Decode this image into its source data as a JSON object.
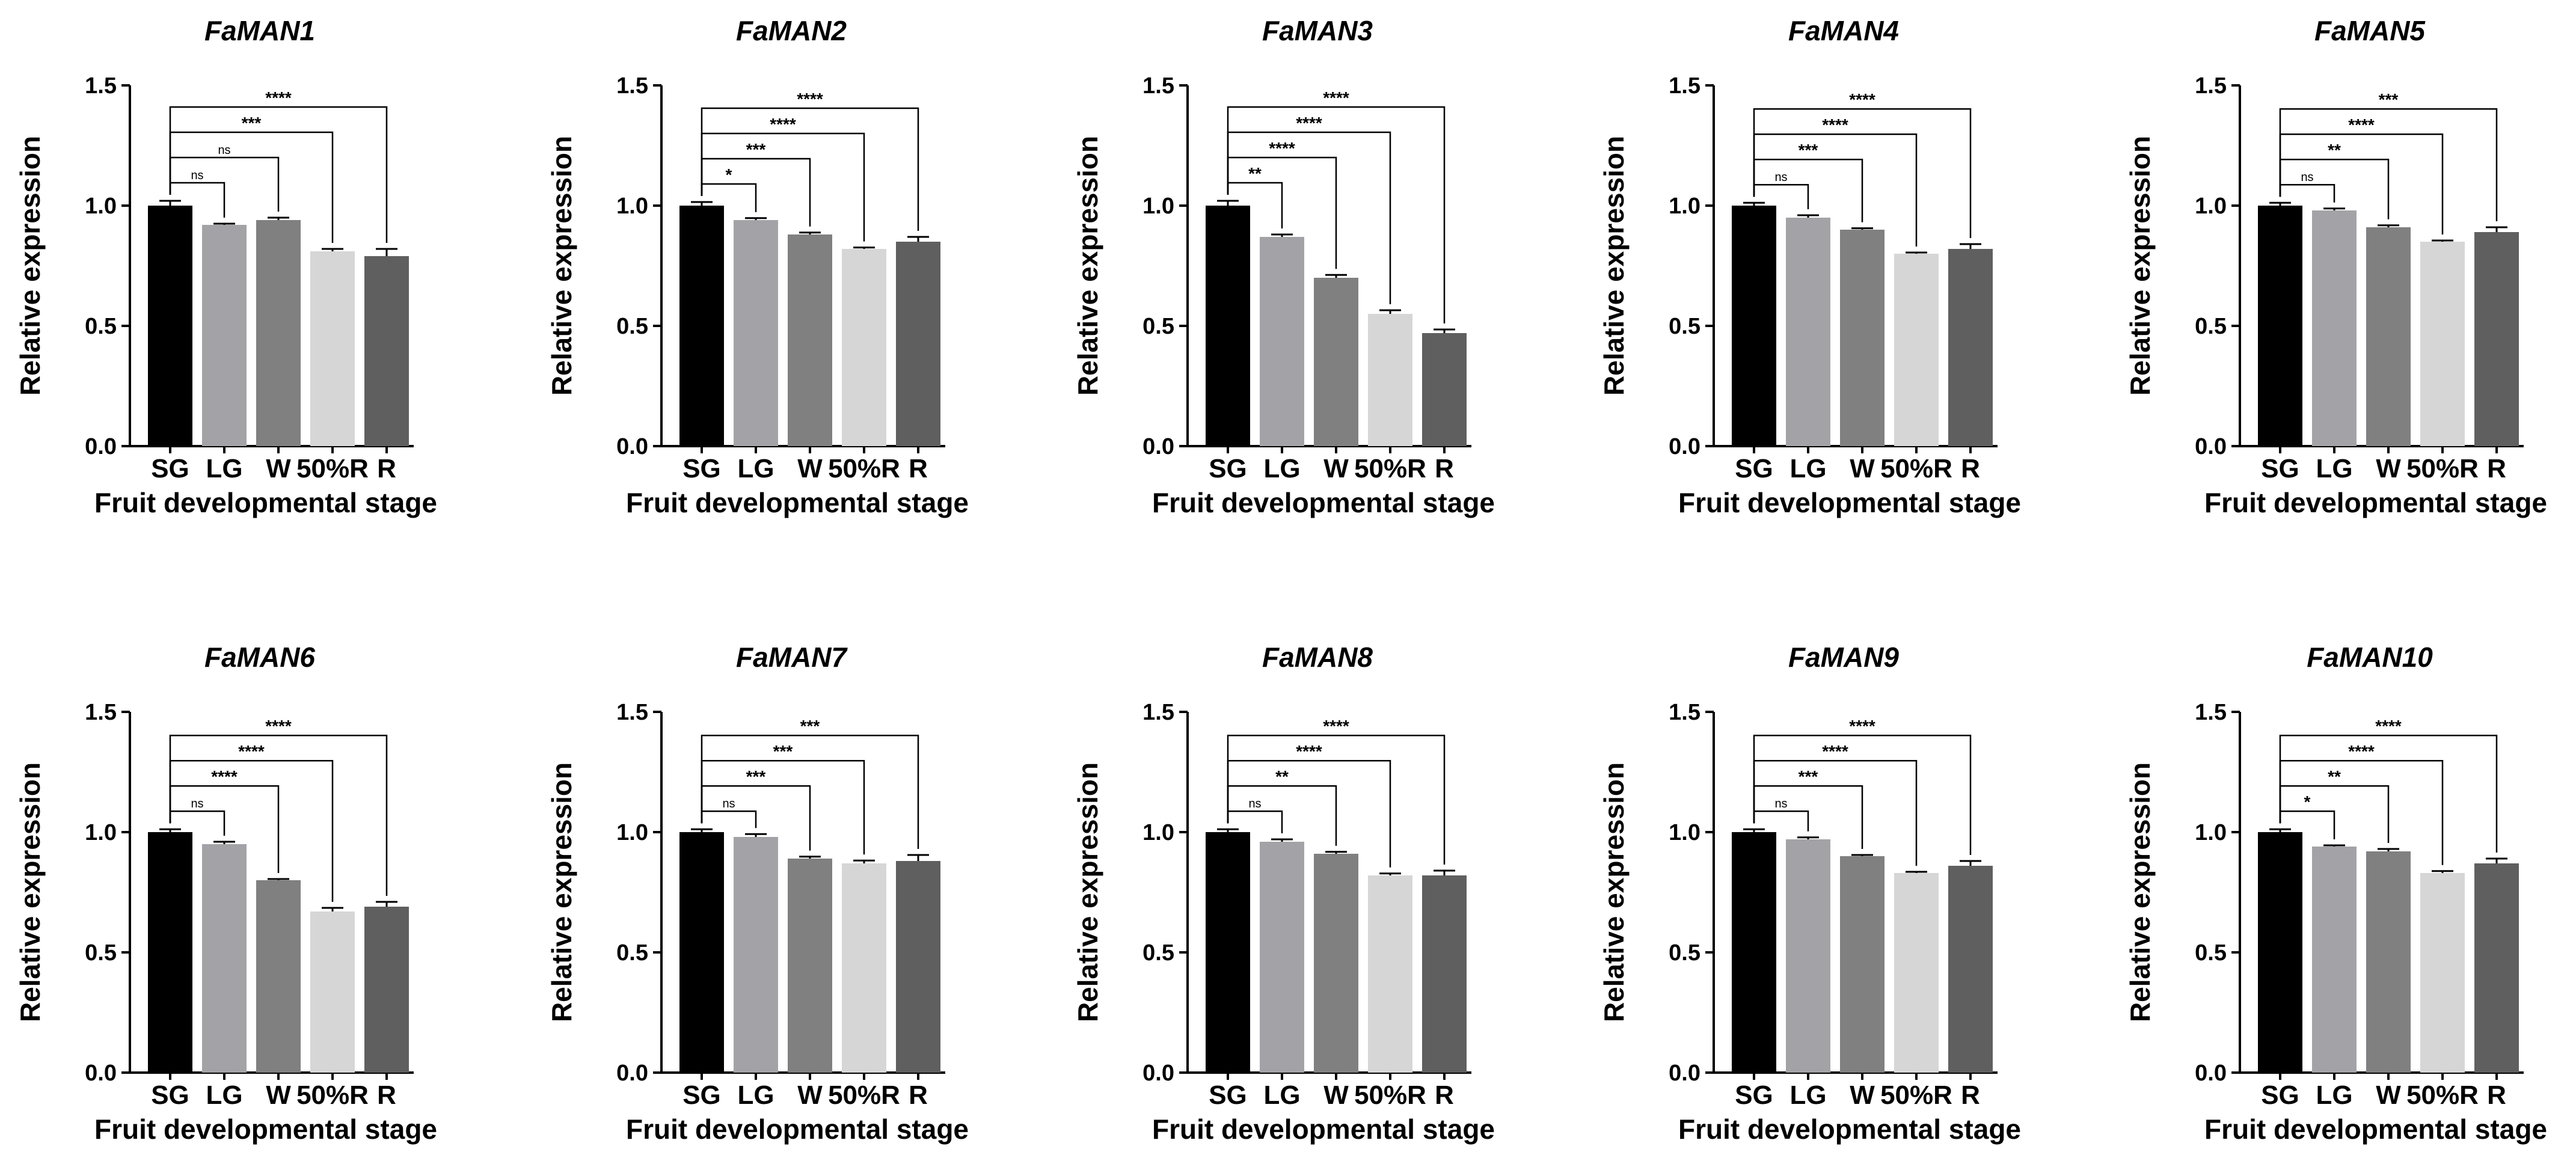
{
  "figure": {
    "common": {
      "categories": [
        "SG",
        "LG",
        "W",
        "50%R",
        "R"
      ],
      "bar_colors": [
        "#000000",
        "#a3a3a7",
        "#808080",
        "#d6d6d6",
        "#5f5f5f"
      ],
      "xlabel": "Fruit developmental stage",
      "ylabel": "Relative expression",
      "ylim": [
        0,
        1.5
      ],
      "yticks": [
        "0.0",
        "0.5",
        "1.0",
        "1.5"
      ]
    }
  },
  "chart_data": [
    {
      "type": "bar",
      "title": "FaMAN1",
      "categories": [
        "SG",
        "LG",
        "W",
        "50%R",
        "R"
      ],
      "values": [
        1.0,
        0.92,
        0.94,
        0.81,
        0.79
      ],
      "errors": [
        0.02,
        0.005,
        0.01,
        0.01,
        0.03
      ],
      "significance": [
        "ns",
        "ns",
        "***",
        "****"
      ],
      "xlabel": "Fruit developmental stage",
      "ylabel": "Relative expression",
      "ylim": [
        0,
        1.5
      ]
    },
    {
      "type": "bar",
      "title": "FaMAN2",
      "categories": [
        "SG",
        "LG",
        "W",
        "50%R",
        "R"
      ],
      "values": [
        1.0,
        0.94,
        0.88,
        0.82,
        0.85
      ],
      "errors": [
        0.015,
        0.008,
        0.008,
        0.006,
        0.02
      ],
      "significance": [
        "*",
        "***",
        "****",
        "****"
      ],
      "xlabel": "Fruit developmental stage",
      "ylabel": "Relative expression",
      "ylim": [
        0,
        1.5
      ]
    },
    {
      "type": "bar",
      "title": "FaMAN3",
      "categories": [
        "SG",
        "LG",
        "W",
        "50%R",
        "R"
      ],
      "values": [
        1.0,
        0.87,
        0.7,
        0.55,
        0.47
      ],
      "errors": [
        0.02,
        0.01,
        0.012,
        0.015,
        0.015
      ],
      "significance": [
        "**",
        "****",
        "****",
        "****"
      ],
      "xlabel": "Fruit developmental stage",
      "ylabel": "Relative expression",
      "ylim": [
        0,
        1.5
      ]
    },
    {
      "type": "bar",
      "title": "FaMAN4",
      "categories": [
        "SG",
        "LG",
        "W",
        "50%R",
        "R"
      ],
      "values": [
        1.0,
        0.95,
        0.9,
        0.8,
        0.82
      ],
      "errors": [
        0.012,
        0.01,
        0.006,
        0.005,
        0.02
      ],
      "significance": [
        "ns",
        "***",
        "****",
        "****"
      ],
      "xlabel": "Fruit developmental stage",
      "ylabel": "Relative expression",
      "ylim": [
        0,
        1.5
      ]
    },
    {
      "type": "bar",
      "title": "FaMAN5",
      "categories": [
        "SG",
        "LG",
        "W",
        "50%R",
        "R"
      ],
      "values": [
        1.0,
        0.98,
        0.91,
        0.85,
        0.89
      ],
      "errors": [
        0.012,
        0.008,
        0.008,
        0.005,
        0.02
      ],
      "significance": [
        "ns",
        "**",
        "****",
        "***"
      ],
      "xlabel": "Fruit developmental stage",
      "ylabel": "Relative expression",
      "ylim": [
        0,
        1.5
      ]
    },
    {
      "type": "bar",
      "title": "FaMAN6",
      "categories": [
        "SG",
        "LG",
        "W",
        "50%R",
        "R"
      ],
      "values": [
        1.0,
        0.95,
        0.8,
        0.67,
        0.69
      ],
      "errors": [
        0.012,
        0.01,
        0.005,
        0.015,
        0.02
      ],
      "significance": [
        "ns",
        "****",
        "****",
        "****"
      ],
      "xlabel": "Fruit developmental stage",
      "ylabel": "Relative expression",
      "ylim": [
        0,
        1.5
      ]
    },
    {
      "type": "bar",
      "title": "FaMAN7",
      "categories": [
        "SG",
        "LG",
        "W",
        "50%R",
        "R"
      ],
      "values": [
        1.0,
        0.98,
        0.89,
        0.87,
        0.88
      ],
      "errors": [
        0.012,
        0.012,
        0.008,
        0.012,
        0.025
      ],
      "significance": [
        "ns",
        "***",
        "***",
        "***"
      ],
      "xlabel": "Fruit developmental stage",
      "ylabel": "Relative expression",
      "ylim": [
        0,
        1.5
      ]
    },
    {
      "type": "bar",
      "title": "FaMAN8",
      "categories": [
        "SG",
        "LG",
        "W",
        "50%R",
        "R"
      ],
      "values": [
        1.0,
        0.96,
        0.91,
        0.82,
        0.82
      ],
      "errors": [
        0.012,
        0.01,
        0.008,
        0.008,
        0.02
      ],
      "significance": [
        "ns",
        "**",
        "****",
        "****"
      ],
      "xlabel": "Fruit developmental stage",
      "ylabel": "Relative expression",
      "ylim": [
        0,
        1.5
      ]
    },
    {
      "type": "bar",
      "title": "FaMAN9",
      "categories": [
        "SG",
        "LG",
        "W",
        "50%R",
        "R"
      ],
      "values": [
        1.0,
        0.97,
        0.9,
        0.83,
        0.86
      ],
      "errors": [
        0.012,
        0.008,
        0.005,
        0.005,
        0.02
      ],
      "significance": [
        "ns",
        "***",
        "****",
        "****"
      ],
      "xlabel": "Fruit developmental stage",
      "ylabel": "Relative expression",
      "ylim": [
        0,
        1.5
      ]
    },
    {
      "type": "bar",
      "title": "FaMAN10",
      "categories": [
        "SG",
        "LG",
        "W",
        "50%R",
        "R"
      ],
      "values": [
        1.0,
        0.94,
        0.92,
        0.83,
        0.87
      ],
      "errors": [
        0.012,
        0.005,
        0.01,
        0.008,
        0.02
      ],
      "significance": [
        "*",
        "**",
        "****",
        "****"
      ],
      "xlabel": "Fruit developmental stage",
      "ylabel": "Relative expression",
      "ylim": [
        0,
        1.5
      ]
    }
  ]
}
